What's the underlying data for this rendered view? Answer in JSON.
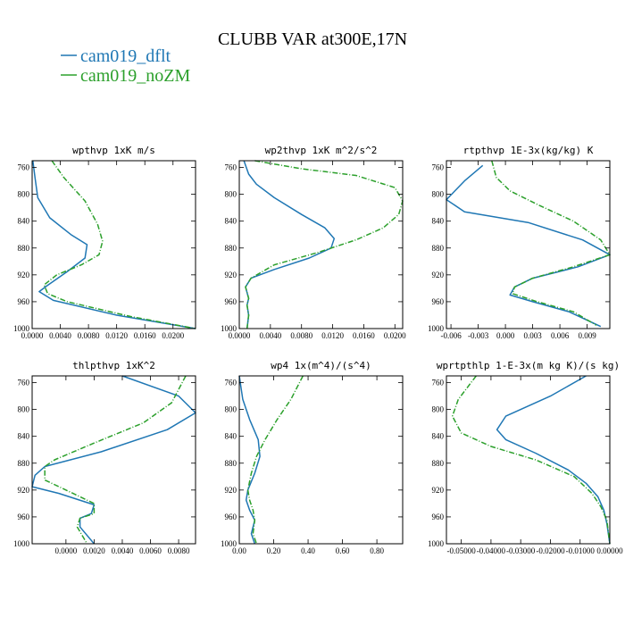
{
  "title": "CLUBB VAR at300E,17N",
  "legend": [
    {
      "label": "cam019_dflt",
      "color": "#1f77b4",
      "dash": "solid"
    },
    {
      "label": "cam019_noZM",
      "color": "#2ca02c",
      "dash": "dashdot"
    }
  ],
  "chart_data": [
    {
      "type": "line",
      "title": "wpthvp  1xK m/s",
      "xlim": [
        0.0,
        0.0232
      ],
      "ylim": [
        1000,
        750
      ],
      "xticks": [
        0.0,
        0.004,
        0.008,
        0.012,
        0.016,
        0.02
      ],
      "xtick_labels": [
        "0.0000",
        "0.0040",
        "0.0080",
        "0.0120",
        "0.0160",
        "0.0200"
      ],
      "yticks": [
        760,
        800,
        840,
        880,
        920,
        960,
        1000
      ],
      "ytick_labels": [
        "760",
        "800",
        "840",
        "880",
        "920",
        "960",
        "1000"
      ],
      "series": [
        {
          "name": "cam019_dflt",
          "color": "#1f77b4",
          "x": [
            0.0001,
            0.0004,
            0.0008,
            0.0025,
            0.0055,
            0.0078,
            0.0075,
            0.005,
            0.002,
            0.001,
            0.003,
            0.012,
            0.0232
          ],
          "y": [
            750,
            775,
            805,
            835,
            860,
            875,
            895,
            915,
            937,
            945,
            958,
            980,
            1000
          ]
        },
        {
          "name": "cam019_noZM",
          "color": "#2ca02c",
          "x": [
            0.0028,
            0.0045,
            0.0075,
            0.0093,
            0.01,
            0.0095,
            0.007,
            0.0035,
            0.0017,
            0.0022,
            0.005,
            0.014,
            0.0232
          ],
          "y": [
            750,
            775,
            810,
            845,
            870,
            890,
            905,
            920,
            935,
            948,
            960,
            982,
            1000
          ]
        }
      ]
    },
    {
      "type": "line",
      "title": "wp2thvp  1xK m^2/s^2",
      "xlim": [
        0.0,
        0.021
      ],
      "ylim": [
        1000,
        750
      ],
      "xticks": [
        0.0,
        0.004,
        0.008,
        0.012,
        0.016,
        0.02
      ],
      "xtick_labels": [
        "0.0000",
        "0.0040",
        "0.0080",
        "0.0120",
        "0.0160",
        "0.0200"
      ],
      "yticks": [
        760,
        800,
        840,
        880,
        920,
        960,
        1000
      ],
      "ytick_labels": [
        "760",
        "800",
        "840",
        "880",
        "920",
        "960",
        "1000"
      ],
      "series": [
        {
          "name": "cam019_dflt",
          "color": "#1f77b4",
          "x": [
            0.0006,
            0.0012,
            0.0022,
            0.0045,
            0.008,
            0.011,
            0.0122,
            0.0118,
            0.009,
            0.0045,
            0.0015,
            0.0008,
            0.0012,
            0.001,
            0.0012,
            0.001
          ],
          "y": [
            750,
            770,
            785,
            805,
            830,
            850,
            866,
            880,
            895,
            912,
            925,
            938,
            955,
            965,
            980,
            1000
          ]
        },
        {
          "name": "cam019_noZM",
          "color": "#2ca02c",
          "x": [
            0.002,
            0.008,
            0.015,
            0.02,
            0.021,
            0.0205,
            0.0185,
            0.015,
            0.01,
            0.0045,
            0.0015,
            0.0008,
            0.0012,
            0.001,
            0.0012,
            0.001
          ],
          "y": [
            750,
            762,
            772,
            790,
            810,
            830,
            850,
            868,
            887,
            905,
            925,
            938,
            955,
            965,
            980,
            1000
          ]
        }
      ]
    },
    {
      "type": "line",
      "title": "rtpthvp  1E-3x(kg/kg) K",
      "xlim": [
        -0.0065,
        0.0115
      ],
      "ylim": [
        1000,
        750
      ],
      "xticks": [
        -0.006,
        -0.003,
        0.0,
        0.003,
        0.006,
        0.009
      ],
      "xtick_labels": [
        "-0.006",
        "-0.003",
        "0.000",
        "0.003",
        "0.006",
        "0.009"
      ],
      "yticks": [
        760,
        800,
        840,
        880,
        920,
        960,
        1000
      ],
      "ytick_labels": [
        "760",
        "800",
        "840",
        "880",
        "920",
        "960",
        "1000"
      ],
      "series": [
        {
          "name": "cam019_dflt",
          "color": "#1f77b4",
          "x": [
            -0.0025,
            -0.0045,
            -0.0065,
            -0.0045,
            0.0025,
            0.0085,
            0.0115,
            0.008,
            0.003,
            0.001,
            0.0005,
            0.003,
            0.007,
            0.0105
          ],
          "y": [
            757,
            780,
            808,
            826,
            842,
            868,
            890,
            908,
            925,
            938,
            950,
            960,
            975,
            997
          ]
        },
        {
          "name": "cam019_noZM",
          "color": "#2ca02c",
          "x": [
            -0.0015,
            -0.001,
            0.0005,
            0.0035,
            0.0075,
            0.0105,
            0.0115,
            0.0075,
            0.003,
            0.001,
            0.0008,
            0.0035,
            0.0075,
            0.01
          ],
          "y": [
            750,
            775,
            795,
            815,
            840,
            868,
            890,
            908,
            925,
            938,
            948,
            960,
            975,
            995
          ]
        }
      ]
    },
    {
      "type": "line",
      "title": "thlpthvp  1xK^2",
      "xlim": [
        -0.0024,
        0.0092
      ],
      "ylim": [
        1000,
        750
      ],
      "xticks": [
        0.0,
        0.002,
        0.004,
        0.006,
        0.008
      ],
      "xtick_labels": [
        "0.0000",
        "0.0020",
        "0.0040",
        "0.0060",
        "0.0080"
      ],
      "yticks": [
        760,
        800,
        840,
        880,
        920,
        960,
        1000
      ],
      "ytick_labels": [
        "760",
        "800",
        "840",
        "880",
        "920",
        "960",
        "1000"
      ],
      "series": [
        {
          "name": "cam019_dflt",
          "color": "#1f77b4",
          "x": [
            0.004,
            0.008,
            0.0092,
            0.0072,
            0.0025,
            -0.0015,
            -0.0022,
            -0.0024,
            -0.0005,
            0.002,
            0.0018,
            0.001,
            0.001,
            0.002
          ],
          "y": [
            750,
            780,
            805,
            830,
            863,
            885,
            898,
            915,
            925,
            942,
            955,
            962,
            975,
            1000
          ]
        },
        {
          "name": "cam019_noZM",
          "color": "#2ca02c",
          "x": [
            0.0085,
            0.0075,
            0.0055,
            0.002,
            -0.0008,
            -0.0015,
            -0.0015,
            0.0005,
            0.002,
            0.002,
            0.001,
            0.0008,
            0.0015
          ],
          "y": [
            750,
            790,
            820,
            850,
            875,
            885,
            905,
            925,
            940,
            955,
            962,
            975,
            1000
          ]
        }
      ]
    },
    {
      "type": "line",
      "title": "wp4  1x(m^4)/(s^4)",
      "xlim": [
        0.0,
        0.95
      ],
      "ylim": [
        1000,
        750
      ],
      "xticks": [
        0.0,
        0.2,
        0.4,
        0.6,
        0.8
      ],
      "xtick_labels": [
        "0.00",
        "0.20",
        "0.40",
        "0.60",
        "0.80"
      ],
      "yticks": [
        760,
        800,
        840,
        880,
        920,
        960,
        1000
      ],
      "ytick_labels": [
        "760",
        "800",
        "840",
        "880",
        "920",
        "960",
        "1000"
      ],
      "series": [
        {
          "name": "cam019_dflt",
          "color": "#1f77b4",
          "x": [
            0.0,
            0.02,
            0.06,
            0.11,
            0.12,
            0.09,
            0.05,
            0.04,
            0.06,
            0.09,
            0.07,
            0.09
          ],
          "y": [
            750,
            785,
            815,
            845,
            870,
            895,
            920,
            935,
            950,
            965,
            985,
            1000
          ]
        },
        {
          "name": "cam019_noZM",
          "color": "#2ca02c",
          "x": [
            0.37,
            0.3,
            0.22,
            0.15,
            0.1,
            0.07,
            0.05,
            0.06,
            0.08,
            0.09,
            0.08,
            0.1
          ],
          "y": [
            750,
            785,
            815,
            845,
            870,
            895,
            920,
            935,
            950,
            965,
            985,
            1000
          ]
        }
      ]
    },
    {
      "type": "line",
      "title": "wprtpthlp  1-E-3x(m kg K)/(s kg)",
      "xlim": [
        -0.055,
        0.0
      ],
      "ylim": [
        1000,
        750
      ],
      "xticks": [
        -0.05,
        -0.04,
        -0.03,
        -0.02,
        -0.01,
        0.0
      ],
      "xtick_labels": [
        "-0.05000",
        "-0.04000",
        "-0.03000",
        "-0.02000",
        "-0.01000",
        "0.00000"
      ],
      "yticks": [
        760,
        800,
        840,
        880,
        920,
        960,
        1000
      ],
      "ytick_labels": [
        "760",
        "800",
        "840",
        "880",
        "920",
        "960",
        "1000"
      ],
      "series": [
        {
          "name": "cam019_dflt",
          "color": "#1f77b4",
          "x": [
            -0.008,
            -0.02,
            -0.035,
            -0.038,
            -0.035,
            -0.025,
            -0.014,
            -0.008,
            -0.004,
            -0.002,
            -0.001,
            0.0
          ],
          "y": [
            750,
            780,
            810,
            830,
            845,
            865,
            890,
            910,
            930,
            950,
            970,
            1000
          ]
        },
        {
          "name": "cam019_noZM",
          "color": "#2ca02c",
          "x": [
            -0.045,
            -0.051,
            -0.053,
            -0.05,
            -0.04,
            -0.025,
            -0.012,
            -0.006,
            -0.003,
            -0.001,
            0.0
          ],
          "y": [
            750,
            785,
            810,
            835,
            855,
            875,
            900,
            925,
            945,
            965,
            1000
          ]
        }
      ]
    }
  ]
}
